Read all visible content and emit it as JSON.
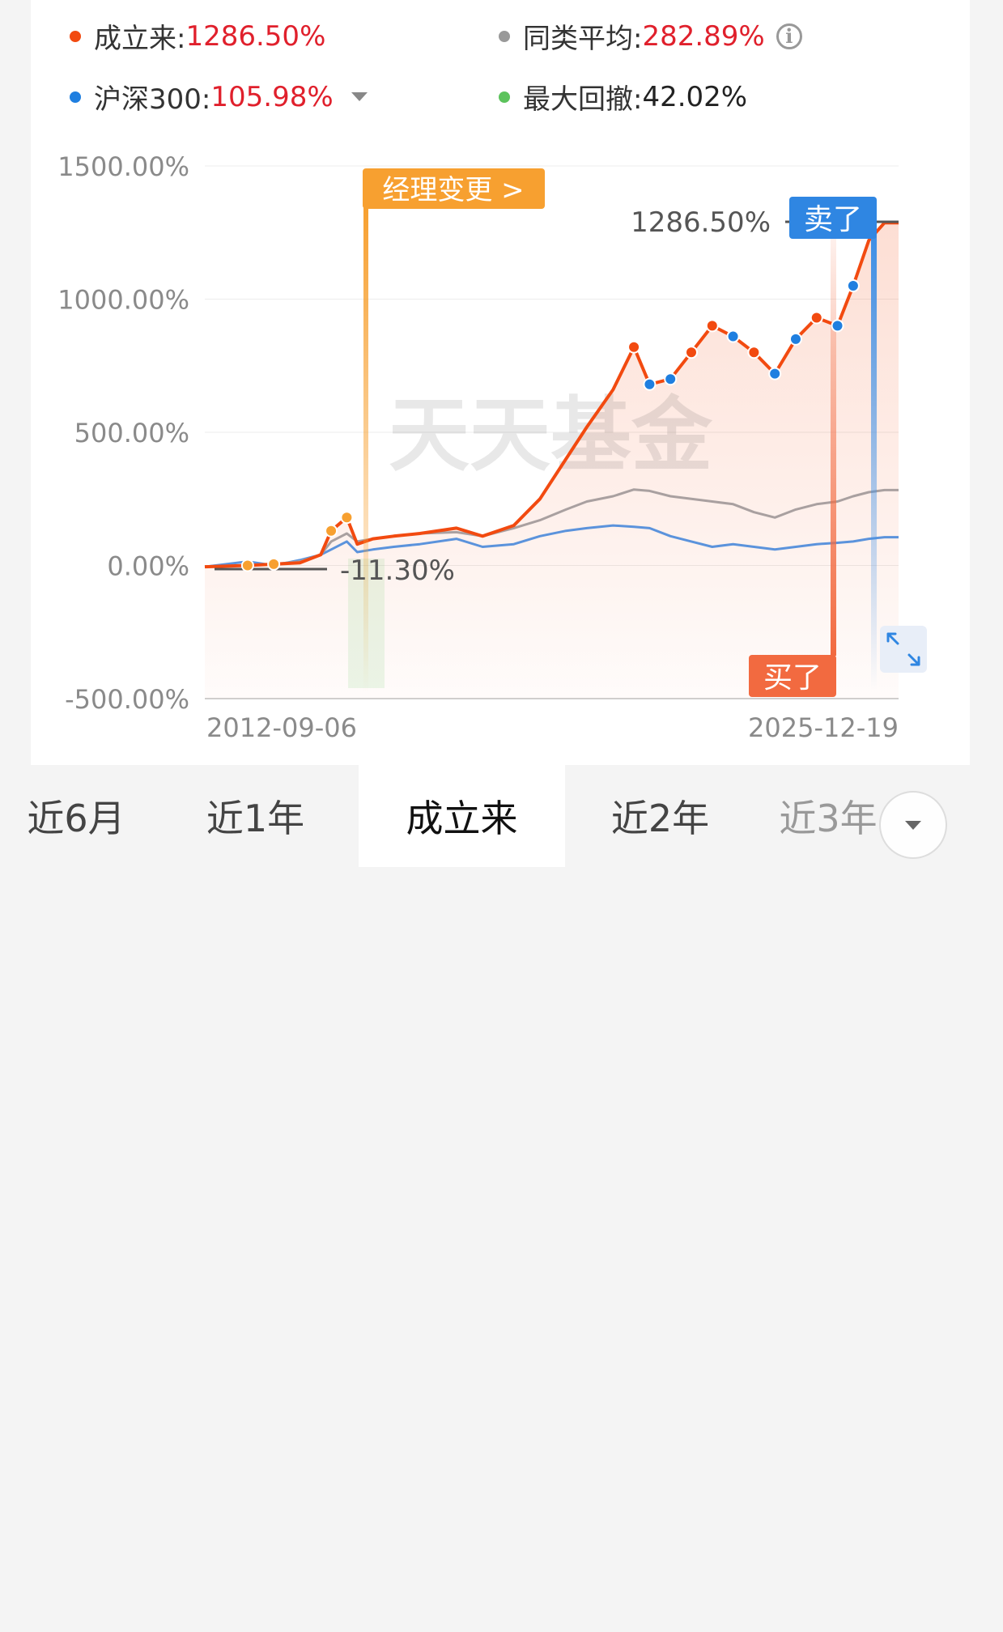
{
  "legend": {
    "since_inception": {
      "label": "成立来:",
      "value": "1286.50%",
      "color": "#f24a10"
    },
    "category_avg": {
      "label": "同类平均:",
      "value": "282.89%",
      "color": "#999999"
    },
    "csi300": {
      "label": "沪深300:",
      "value": "105.98%",
      "color": "#1f7fe0"
    },
    "max_drawdown": {
      "label": "最大回撤:",
      "value": "42.02%",
      "color": "#5cc35c"
    }
  },
  "watermark": "天天基金",
  "markers": {
    "manager_change": "经理变更 >",
    "sell": "卖了",
    "buy": "买了",
    "end_value_label": "1286.50%",
    "min_value_label": "-11.30%"
  },
  "tabs": [
    {
      "label": "近6月",
      "active": false
    },
    {
      "label": "近1年",
      "active": false
    },
    {
      "label": "成立来",
      "active": true
    },
    {
      "label": "近2年",
      "active": false
    },
    {
      "label": "近3年",
      "active": false
    }
  ],
  "chart_data": {
    "type": "line",
    "x_ticks": [
      "2012-09-06",
      "2025-12-19"
    ],
    "y_ticks": [
      "1500.00%",
      "1000.00%",
      "500.00%",
      "0.00%",
      "-500.00%"
    ],
    "ylim": [
      -500,
      1500
    ],
    "x": [
      2012.68,
      2013.5,
      2014.0,
      2014.5,
      2014.9,
      2015.1,
      2015.4,
      2015.6,
      2015.9,
      2016.3,
      2016.8,
      2017.5,
      2018.0,
      2018.6,
      2019.1,
      2019.6,
      2020.0,
      2020.5,
      2020.9,
      2021.2,
      2021.6,
      2022.0,
      2022.4,
      2022.8,
      2023.2,
      2023.6,
      2024.0,
      2024.4,
      2024.8,
      2025.1,
      2025.4,
      2025.7,
      2025.97
    ],
    "series": [
      {
        "name": "成立来",
        "color": "#f24a10",
        "values": [
          -5,
          0,
          5,
          10,
          40,
          130,
          180,
          80,
          100,
          110,
          120,
          140,
          110,
          150,
          250,
          400,
          520,
          660,
          820,
          680,
          700,
          800,
          900,
          860,
          800,
          720,
          850,
          930,
          900,
          1050,
          1220,
          1286.5,
          1286.5
        ]
      },
      {
        "name": "同类平均",
        "color": "#a9a0a0",
        "values": [
          -5,
          0,
          5,
          15,
          40,
          90,
          120,
          90,
          100,
          110,
          120,
          125,
          110,
          140,
          170,
          210,
          240,
          260,
          285,
          280,
          260,
          250,
          240,
          230,
          200,
          180,
          210,
          230,
          240,
          260,
          275,
          282.89,
          282.89
        ]
      },
      {
        "name": "沪深300",
        "color": "#5b93dc",
        "values": [
          -5,
          15,
          0,
          20,
          40,
          60,
          90,
          50,
          60,
          70,
          80,
          100,
          70,
          80,
          110,
          130,
          140,
          150,
          145,
          140,
          110,
          90,
          70,
          80,
          70,
          60,
          70,
          80,
          85,
          90,
          100,
          105.98,
          105.98
        ]
      }
    ]
  }
}
